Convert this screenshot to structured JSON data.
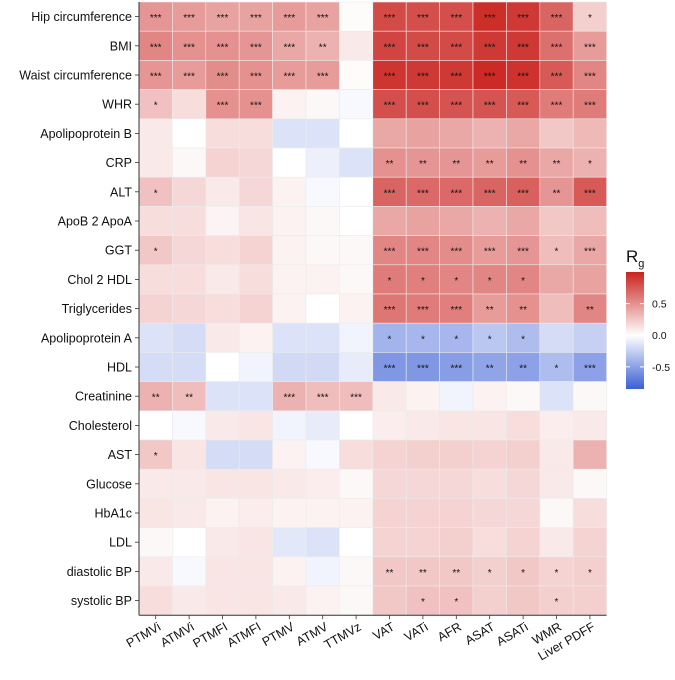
{
  "chart_data": {
    "type": "heatmap",
    "title": "",
    "xlabel": "",
    "ylabel": "",
    "columns": [
      "PTMVi",
      "ATMVi",
      "PTMFI",
      "ATMFI",
      "PTMV",
      "ATMV",
      "TTMVz",
      "VAT",
      "VATi",
      "AFR",
      "ASAT",
      "ASATi",
      "WMR",
      "Liver PDFF"
    ],
    "rows": [
      "Hip circumference",
      "BMI",
      "Waist circumference",
      "WHR",
      "Apolipoprotein B",
      "CRP",
      "ALT",
      "ApoB 2 ApoA",
      "GGT",
      "Chol 2 HDL",
      "Triglycerides",
      "Apolipoprotein A",
      "HDL",
      "Creatinine",
      "Cholesterol",
      "AST",
      "Glucose",
      "HbA1c",
      "LDL",
      "diastolic BP",
      "systolic BP"
    ],
    "values": [
      [
        0.48,
        0.45,
        0.42,
        0.42,
        0.45,
        0.42,
        0.02,
        0.82,
        0.8,
        0.8,
        0.95,
        0.9,
        0.7,
        0.22
      ],
      [
        0.55,
        0.5,
        0.5,
        0.48,
        0.4,
        0.35,
        0.1,
        0.85,
        0.82,
        0.82,
        0.9,
        0.9,
        0.65,
        0.45
      ],
      [
        0.48,
        0.45,
        0.52,
        0.5,
        0.45,
        0.45,
        0.02,
        0.92,
        0.9,
        0.9,
        0.97,
        0.93,
        0.75,
        0.55
      ],
      [
        0.28,
        0.15,
        0.5,
        0.5,
        0.06,
        0.03,
        -0.03,
        0.8,
        0.8,
        0.78,
        0.78,
        0.75,
        0.6,
        0.6
      ],
      [
        0.1,
        0.0,
        0.15,
        0.15,
        -0.15,
        -0.15,
        0.0,
        0.4,
        0.42,
        0.4,
        0.35,
        0.4,
        0.25,
        0.32
      ],
      [
        0.1,
        0.03,
        0.2,
        0.18,
        0.0,
        -0.08,
        -0.15,
        0.5,
        0.48,
        0.48,
        0.45,
        0.5,
        0.4,
        0.35
      ],
      [
        0.28,
        0.18,
        0.1,
        0.18,
        0.06,
        -0.03,
        0.0,
        0.7,
        0.68,
        0.68,
        0.7,
        0.72,
        0.48,
        0.75
      ],
      [
        0.15,
        0.15,
        0.05,
        0.12,
        0.06,
        0.03,
        0.0,
        0.4,
        0.42,
        0.4,
        0.35,
        0.4,
        0.25,
        0.3
      ],
      [
        0.25,
        0.18,
        0.15,
        0.2,
        0.06,
        0.03,
        0.03,
        0.55,
        0.55,
        0.52,
        0.45,
        0.48,
        0.3,
        0.4
      ],
      [
        0.15,
        0.15,
        0.1,
        0.15,
        0.06,
        0.06,
        0.03,
        0.6,
        0.58,
        0.55,
        0.55,
        0.55,
        0.4,
        0.42
      ],
      [
        0.2,
        0.18,
        0.15,
        0.2,
        0.06,
        0.0,
        0.06,
        0.62,
        0.6,
        0.58,
        0.45,
        0.5,
        0.3,
        0.55
      ],
      [
        -0.15,
        -0.18,
        0.1,
        0.06,
        -0.15,
        -0.15,
        -0.06,
        -0.4,
        -0.38,
        -0.38,
        -0.3,
        -0.35,
        -0.18,
        -0.25
      ],
      [
        -0.18,
        -0.18,
        0.0,
        -0.06,
        -0.2,
        -0.2,
        -0.1,
        -0.55,
        -0.55,
        -0.52,
        -0.48,
        -0.5,
        -0.35,
        -0.5
      ],
      [
        0.35,
        0.3,
        -0.15,
        -0.15,
        0.35,
        0.3,
        0.3,
        0.1,
        0.06,
        -0.06,
        0.06,
        0.03,
        -0.15,
        0.03
      ],
      [
        0.0,
        -0.03,
        0.1,
        0.12,
        -0.06,
        -0.1,
        0.0,
        0.08,
        0.1,
        0.12,
        0.12,
        0.15,
        0.08,
        0.1
      ],
      [
        0.25,
        0.12,
        -0.18,
        -0.18,
        0.06,
        -0.03,
        0.15,
        0.2,
        0.22,
        0.22,
        0.2,
        0.22,
        0.1,
        0.35
      ],
      [
        0.1,
        0.1,
        0.12,
        0.12,
        0.1,
        0.08,
        0.03,
        0.18,
        0.18,
        0.18,
        0.15,
        0.18,
        0.1,
        0.03
      ],
      [
        0.12,
        0.1,
        0.06,
        0.08,
        0.06,
        0.06,
        0.06,
        0.2,
        0.2,
        0.2,
        0.18,
        0.18,
        0.03,
        0.15
      ],
      [
        0.03,
        0.0,
        0.1,
        0.12,
        -0.12,
        -0.15,
        0.0,
        0.2,
        0.2,
        0.22,
        0.15,
        0.2,
        0.1,
        0.2
      ],
      [
        0.1,
        -0.03,
        0.12,
        0.12,
        0.06,
        -0.06,
        0.03,
        0.25,
        0.25,
        0.25,
        0.22,
        0.25,
        0.2,
        0.22
      ],
      [
        0.15,
        0.1,
        0.12,
        0.12,
        0.1,
        0.06,
        0.03,
        0.25,
        0.28,
        0.28,
        0.22,
        0.25,
        0.22,
        0.22
      ]
    ],
    "significance": [
      [
        "***",
        "***",
        "***",
        "***",
        "***",
        "***",
        "",
        "***",
        "***",
        "***",
        "***",
        "***",
        "***",
        "*"
      ],
      [
        "***",
        "***",
        "***",
        "***",
        "***",
        "**",
        "",
        "***",
        "***",
        "***",
        "***",
        "***",
        "***",
        "***"
      ],
      [
        "***",
        "***",
        "***",
        "***",
        "***",
        "***",
        "",
        "***",
        "***",
        "***",
        "***",
        "***",
        "***",
        "***"
      ],
      [
        "*",
        "",
        "***",
        "***",
        "",
        "",
        "",
        "***",
        "***",
        "***",
        "***",
        "***",
        "***",
        "***"
      ],
      [
        "",
        "",
        "",
        "",
        "",
        "",
        "",
        "",
        "",
        "",
        "",
        "",
        "",
        ""
      ],
      [
        "",
        "",
        "",
        "",
        "",
        "",
        "",
        "**",
        "**",
        "**",
        "**",
        "**",
        "**",
        "*"
      ],
      [
        "*",
        "",
        "",
        "",
        "",
        "",
        "",
        "***",
        "***",
        "***",
        "***",
        "***",
        "**",
        "***"
      ],
      [
        "",
        "",
        "",
        "",
        "",
        "",
        "",
        "",
        "",
        "",
        "",
        "",
        "",
        ""
      ],
      [
        "*",
        "",
        "",
        "",
        "",
        "",
        "",
        "***",
        "***",
        "***",
        "***",
        "***",
        "*",
        "***"
      ],
      [
        "",
        "",
        "",
        "",
        "",
        "",
        "",
        "*",
        "*",
        "*",
        "*",
        "*",
        "",
        ""
      ],
      [
        "",
        "",
        "",
        "",
        "",
        "",
        "",
        "***",
        "***",
        "***",
        "**",
        "**",
        "",
        "**"
      ],
      [
        "",
        "",
        "",
        "",
        "",
        "",
        "",
        "*",
        "*",
        "*",
        "*",
        "*",
        "",
        ""
      ],
      [
        "",
        "",
        "",
        "",
        "",
        "",
        "",
        "***",
        "***",
        "***",
        "**",
        "**",
        "*",
        "***"
      ],
      [
        "**",
        "**",
        "",
        "",
        "***",
        "***",
        "***",
        "",
        "",
        "",
        "",
        "",
        "",
        ""
      ],
      [
        "",
        "",
        "",
        "",
        "",
        "",
        "",
        "",
        "",
        "",
        "",
        "",
        "",
        ""
      ],
      [
        "*",
        "",
        "",
        "",
        "",
        "",
        "",
        "",
        "",
        "",
        "",
        "",
        "",
        ""
      ],
      [
        "",
        "",
        "",
        "",
        "",
        "",
        "",
        "",
        "",
        "",
        "",
        "",
        "",
        ""
      ],
      [
        "",
        "",
        "",
        "",
        "",
        "",
        "",
        "",
        "",
        "",
        "",
        "",
        "",
        ""
      ],
      [
        "",
        "",
        "",
        "",
        "",
        "",
        "",
        "",
        "",
        "",
        "",
        "",
        "",
        ""
      ],
      [
        "",
        "",
        "",
        "",
        "",
        "",
        "",
        "**",
        "**",
        "**",
        "*",
        "*",
        "*",
        "*"
      ],
      [
        "",
        "",
        "",
        "",
        "",
        "",
        "",
        "",
        "*",
        "*",
        "",
        "",
        "*",
        ""
      ]
    ],
    "legend": {
      "title": "R",
      "title_sub": "g",
      "range": [
        -0.85,
        1.0
      ],
      "ticks": [
        0.5,
        0.0,
        -0.5
      ],
      "tick_labels": [
        "0.5",
        "0.0",
        "-0.5"
      ],
      "colors": {
        "low": "#3b5fd6",
        "mid": "#ffffff",
        "high": "#c9231f"
      }
    },
    "legend_position": "right"
  }
}
